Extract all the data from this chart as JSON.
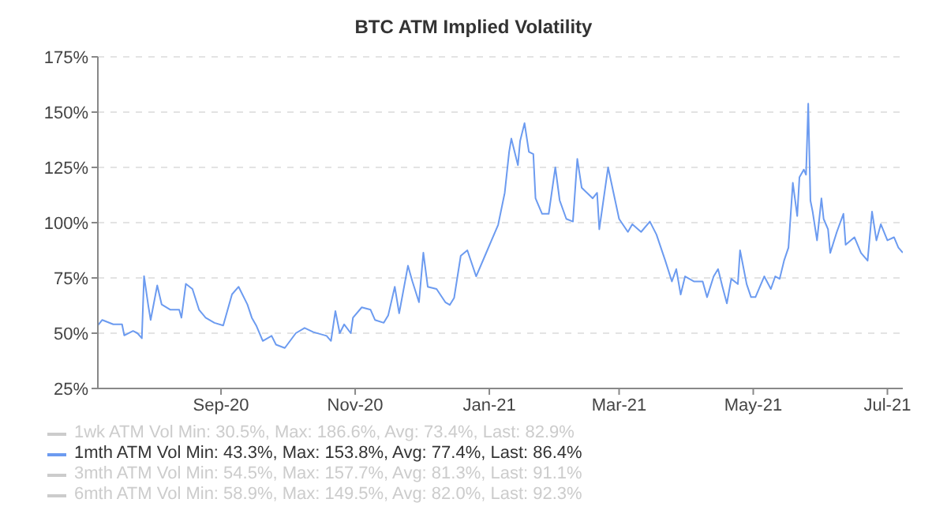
{
  "chart_data": {
    "type": "line",
    "title": "BTC ATM Implied Volatility",
    "x": [
      "2020-07-07",
      "2020-07-09",
      "2020-07-14",
      "2020-07-18",
      "2020-07-19",
      "2020-07-23",
      "2020-07-25",
      "2020-07-27",
      "2020-07-28",
      "2020-07-30",
      "2020-07-31",
      "2020-08-03",
      "2020-08-05",
      "2020-08-09",
      "2020-08-13",
      "2020-08-14",
      "2020-08-16",
      "2020-08-19",
      "2020-08-22",
      "2020-08-25",
      "2020-08-29",
      "2020-09-02",
      "2020-09-06",
      "2020-09-09",
      "2020-09-13",
      "2020-09-15",
      "2020-09-17",
      "2020-09-20",
      "2020-09-24",
      "2020-09-26",
      "2020-09-30",
      "2020-10-05",
      "2020-10-09",
      "2020-10-13",
      "2020-10-19",
      "2020-10-21",
      "2020-10-23",
      "2020-10-25",
      "2020-10-27",
      "2020-10-30",
      "2020-10-31",
      "2020-11-04",
      "2020-11-08",
      "2020-11-10",
      "2020-11-14",
      "2020-11-16",
      "2020-11-19",
      "2020-11-21",
      "2020-11-25",
      "2020-11-27",
      "2020-11-30",
      "2020-12-02",
      "2020-12-04",
      "2020-12-08",
      "2020-12-12",
      "2020-12-14",
      "2020-12-16",
      "2020-12-19",
      "2020-12-22",
      "2020-12-26",
      "2020-12-30",
      "2021-01-02",
      "2021-01-05",
      "2021-01-08",
      "2021-01-10",
      "2021-01-11",
      "2021-01-14",
      "2021-01-15",
      "2021-01-17",
      "2021-01-19",
      "2021-01-21",
      "2021-01-22",
      "2021-01-25",
      "2021-01-28",
      "2021-01-31",
      "2021-02-02",
      "2021-02-05",
      "2021-02-08",
      "2021-02-10",
      "2021-02-12",
      "2021-02-17",
      "2021-02-19",
      "2021-02-20",
      "2021-02-24",
      "2021-02-27",
      "2021-03-01",
      "2021-03-05",
      "2021-03-07",
      "2021-03-11",
      "2021-03-15",
      "2021-03-18",
      "2021-03-22",
      "2021-03-25",
      "2021-03-27",
      "2021-03-29",
      "2021-03-31",
      "2021-04-04",
      "2021-04-08",
      "2021-04-10",
      "2021-04-13",
      "2021-04-15",
      "2021-04-17",
      "2021-04-19",
      "2021-04-21",
      "2021-04-24",
      "2021-04-25",
      "2021-04-28",
      "2021-04-30",
      "2021-05-02",
      "2021-05-06",
      "2021-05-09",
      "2021-05-11",
      "2021-05-13",
      "2021-05-15",
      "2021-05-17",
      "2021-05-19",
      "2021-05-21",
      "2021-05-22",
      "2021-05-24",
      "2021-05-25",
      "2021-05-26",
      "2021-05-27",
      "2021-05-28",
      "2021-05-30",
      "2021-06-01",
      "2021-06-02",
      "2021-06-04",
      "2021-06-05",
      "2021-06-08",
      "2021-06-11",
      "2021-06-12",
      "2021-06-16",
      "2021-06-19",
      "2021-06-22",
      "2021-06-24",
      "2021-06-26",
      "2021-06-28",
      "2021-07-01",
      "2021-07-04",
      "2021-07-06",
      "2021-07-08"
    ],
    "series": [
      {
        "name": "1wk ATM Vol Min: 30.5%, Max: 186.6%, Avg: 73.4%, Last: 82.9%",
        "color": "#cccccc",
        "values": [
          null,
          null,
          null,
          null,
          null,
          null,
          null,
          null,
          null,
          null,
          null,
          null,
          null,
          null,
          null,
          null,
          null,
          null,
          null,
          null,
          null,
          null,
          null,
          null,
          null,
          null,
          null,
          null,
          null,
          null,
          null,
          null,
          null,
          null,
          null,
          null,
          null,
          null,
          null,
          null,
          null,
          null,
          null,
          null,
          null,
          null,
          null,
          null,
          null,
          null,
          null,
          null,
          null,
          null,
          null,
          null,
          null,
          null,
          null,
          null,
          null,
          null,
          null,
          null,
          null,
          null,
          null,
          null,
          null,
          null,
          null,
          null,
          null,
          null,
          null,
          null,
          null,
          null,
          null,
          null,
          null,
          null,
          null,
          null,
          null,
          null,
          null,
          null,
          null,
          null,
          null,
          null,
          null,
          null,
          null,
          null,
          null,
          null,
          null,
          null,
          null,
          null,
          null,
          null,
          null,
          null,
          null,
          null,
          null,
          null,
          null,
          null,
          null,
          null,
          null,
          null,
          null,
          null,
          null,
          null,
          null,
          null,
          null,
          null,
          null,
          null,
          null,
          null,
          null,
          null,
          null,
          null,
          null,
          null,
          null,
          null,
          null,
          null,
          null,
          null,
          null
        ]
      },
      {
        "name": "1mth ATM Vol Min: 43.3%, Max: 153.8%, Avg: 77.4%, Last: 86.4%",
        "color": "#6c9bf0",
        "values": [
          53.5,
          56,
          54,
          54,
          49,
          51,
          50,
          47.7,
          75.8,
          62,
          56,
          71.6,
          63,
          60.6,
          60.6,
          57,
          72.3,
          70,
          60.6,
          57,
          54.7,
          53.5,
          67.6,
          71,
          63,
          57,
          53.5,
          46.5,
          48.8,
          44.8,
          43.3,
          50,
          52.4,
          50.5,
          48.8,
          46.5,
          60,
          50,
          54,
          50,
          57,
          61.7,
          60.6,
          56,
          54.7,
          58,
          71,
          59,
          80.5,
          73.5,
          64,
          86.4,
          71,
          70,
          64,
          62.8,
          66,
          85,
          87.5,
          75.7,
          85,
          92,
          99,
          113.5,
          132,
          138,
          126,
          137,
          145,
          132,
          131,
          111,
          104,
          104,
          125,
          110,
          101.7,
          100.5,
          128.8,
          115.8,
          111,
          113.5,
          97,
          125,
          111,
          101.7,
          95.8,
          99.3,
          95.8,
          100.5,
          94.6,
          82.8,
          73.4,
          79,
          67.5,
          75.7,
          73.4,
          73.4,
          66.3,
          75.7,
          79,
          71,
          63.5,
          74.6,
          72.2,
          87.5,
          72.2,
          66.3,
          66.3,
          75.7,
          70,
          75.7,
          74.6,
          82.8,
          88.7,
          118,
          103,
          120.5,
          124,
          121.7,
          153.8,
          110,
          105,
          92,
          111,
          101.7,
          97,
          86.3,
          95.8,
          104,
          90,
          93.4,
          86.3,
          82.8,
          105,
          92,
          99.3,
          92,
          93.4,
          88.7,
          86.4
        ]
      },
      {
        "name": "3mth ATM Vol Min: 54.5%, Max: 157.7%, Avg: 81.3%, Last: 91.1%",
        "color": "#cccccc",
        "values": [
          null,
          null,
          null,
          null,
          null,
          null,
          null,
          null,
          null,
          null,
          null,
          null,
          null,
          null,
          null,
          null,
          null,
          null,
          null,
          null,
          null,
          null,
          null,
          null,
          null,
          null,
          null,
          null,
          null,
          null,
          null,
          null,
          null,
          null,
          null,
          null,
          null,
          null,
          null,
          null,
          null,
          null,
          null,
          null,
          null,
          null,
          null,
          null,
          null,
          null,
          null,
          null,
          null,
          null,
          null,
          null,
          null,
          null,
          null,
          null,
          null,
          null,
          null,
          null,
          null,
          null,
          null,
          null,
          null,
          null,
          null,
          null,
          null,
          null,
          null,
          null,
          null,
          null,
          null,
          null,
          null,
          null,
          null,
          null,
          null,
          null,
          null,
          null,
          null,
          null,
          null,
          null,
          null,
          null,
          null,
          null,
          null,
          null,
          null,
          null,
          null,
          null,
          null,
          null,
          null,
          null,
          null,
          null,
          null,
          null,
          null,
          null,
          null,
          null,
          null,
          null,
          null,
          null,
          null,
          null,
          null,
          null,
          null,
          null,
          null,
          null,
          null,
          null,
          null,
          null,
          null,
          null,
          null,
          null,
          null,
          null,
          null,
          null,
          null,
          null,
          null
        ]
      },
      {
        "name": "6mth ATM Vol Min: 58.9%, Max: 149.5%, Avg: 82.0%, Last: 92.3%",
        "color": "#cccccc",
        "values": [
          null,
          null,
          null,
          null,
          null,
          null,
          null,
          null,
          null,
          null,
          null,
          null,
          null,
          null,
          null,
          null,
          null,
          null,
          null,
          null,
          null,
          null,
          null,
          null,
          null,
          null,
          null,
          null,
          null,
          null,
          null,
          null,
          null,
          null,
          null,
          null,
          null,
          null,
          null,
          null,
          null,
          null,
          null,
          null,
          null,
          null,
          null,
          null,
          null,
          null,
          null,
          null,
          null,
          null,
          null,
          null,
          null,
          null,
          null,
          null,
          null,
          null,
          null,
          null,
          null,
          null,
          null,
          null,
          null,
          null,
          null,
          null,
          null,
          null,
          null,
          null,
          null,
          null,
          null,
          null,
          null,
          null,
          null,
          null,
          null,
          null,
          null,
          null,
          null,
          null,
          null,
          null,
          null,
          null,
          null,
          null,
          null,
          null,
          null,
          null,
          null,
          null,
          null,
          null,
          null,
          null,
          null,
          null,
          null,
          null,
          null,
          null,
          null,
          null,
          null,
          null,
          null,
          null,
          null,
          null,
          null,
          null,
          null,
          null,
          null,
          null,
          null,
          null,
          null,
          null,
          null,
          null,
          null,
          null,
          null,
          null,
          null,
          null,
          null,
          null,
          null
        ]
      }
    ],
    "xlim": [
      "2020-07-07",
      "2021-07-08"
    ],
    "xticks": [
      {
        "value": "2020-09-01",
        "label": "Sep-20"
      },
      {
        "value": "2020-11-01",
        "label": "Nov-20"
      },
      {
        "value": "2021-01-01",
        "label": "Jan-21"
      },
      {
        "value": "2021-03-01",
        "label": "Mar-21"
      },
      {
        "value": "2021-05-01",
        "label": "May-21"
      },
      {
        "value": "2021-07-01",
        "label": "Jul-21"
      }
    ],
    "ylim": [
      25,
      175
    ],
    "yticks": [
      {
        "value": 25,
        "label": "25%"
      },
      {
        "value": 50,
        "label": "50%"
      },
      {
        "value": 75,
        "label": "75%"
      },
      {
        "value": 100,
        "label": "100%"
      },
      {
        "value": 125,
        "label": "125%"
      },
      {
        "value": 150,
        "label": "150%"
      },
      {
        "value": 175,
        "label": "175%"
      }
    ],
    "grid": "y",
    "legend": "bottom",
    "marker": "none",
    "line_style": "solid"
  }
}
